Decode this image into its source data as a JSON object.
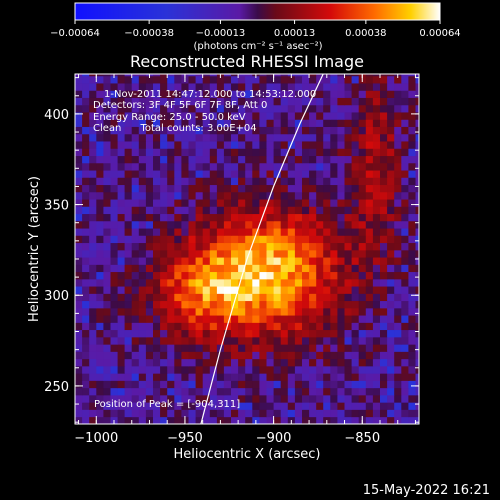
{
  "chart_data": {
    "type": "heatmap",
    "title": "Reconstructed RHESSI Image",
    "xlabel": "Heliocentric X (arcsec)",
    "ylabel": "Heliocentric Y (arcsec)",
    "xlim": [
      -1012,
      -818
    ],
    "ylim": [
      229,
      422
    ],
    "x_ticks": [
      -1000,
      -950,
      -900,
      -850
    ],
    "x_tick_labels": [
      "−1000",
      "−950",
      "−900",
      "−850"
    ],
    "y_ticks": [
      250,
      300,
      350,
      400
    ],
    "y_tick_labels": [
      "250",
      "300",
      "350",
      "400"
    ],
    "colorbar": {
      "range": [
        -0.00064,
        0.00064
      ],
      "ticks": [
        -0.00064,
        -0.00038,
        -0.00013,
        0.00013,
        0.00038,
        0.00064
      ],
      "tick_labels": [
        "−0.00064",
        "−0.00038",
        "−0.00013",
        "0.00013",
        "0.00038",
        "0.00064"
      ],
      "units_text": "(photons cm⁻² s⁻¹ asec⁻²)"
    },
    "annotations": {
      "time": "1-Nov-2011 14:47:12.000 to 14:53:12.000",
      "detectors": "Detectors: 3F 4F 5F 6F 7F 8F, Att 0",
      "energy": "Energy Range: 25.0 - 50.0 keV",
      "method": "Clean      Total counts: 3.00E+04",
      "peak": "Position of Peak = [-904,311]"
    },
    "limb_curve": [
      [
        -941,
        229
      ],
      [
        -930,
        270
      ],
      [
        -915,
        320
      ],
      [
        -900,
        360
      ],
      [
        -885,
        395
      ],
      [
        -872,
        422
      ]
    ],
    "grid": false
  },
  "footer": {
    "date": "15-May-2022 16:21"
  },
  "colors": {
    "background": "#000000",
    "text": "#ffffff"
  }
}
